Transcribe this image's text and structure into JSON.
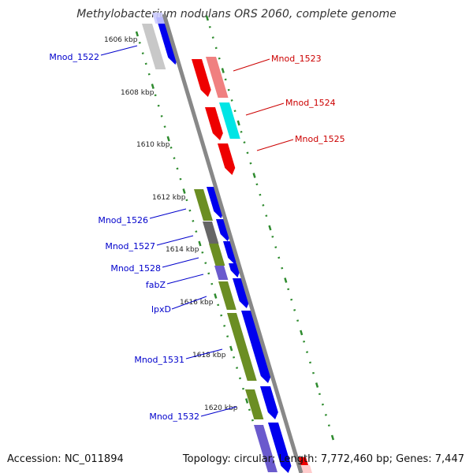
{
  "title": "Methylobacterium nodulans ORS 2060, complete genome",
  "footer": {
    "accession": "Accession: NC_011894",
    "summary": "Topology: circular; Length: 7,772,460 bp; Genes: 7,447"
  },
  "scale_ticks": [
    "1606 kbp",
    "1608 kbp",
    "1610 kbp",
    "1612 kbp",
    "1614 kbp",
    "1616 kbp",
    "1618 kbp",
    "1620 kbp"
  ],
  "gene_labels_left": [
    "Mnod_1522",
    "Mnod_1526",
    "Mnod_1527",
    "Mnod_1528",
    "fabZ",
    "lpxD",
    "Mnod_1531",
    "Mnod_1532"
  ],
  "gene_labels_right": [
    "Mnod_1523",
    "Mnod_1524",
    "Mnod_1525"
  ],
  "colors": {
    "forward_cds": "#0000ee",
    "reverse_cds": "#ee0000",
    "cog_olive": "#6b8e23",
    "cog_grey": "#666666",
    "cog_purple": "#6a5acd",
    "cog_pink": "#f08080",
    "cog_cyan": "#00e5e5",
    "cog_lightgrey": "#c8c8c8",
    "left_label": "#0000cc",
    "right_label": "#cc0000",
    "tick_green": "#2e8b2e",
    "backbone": "#888888"
  }
}
